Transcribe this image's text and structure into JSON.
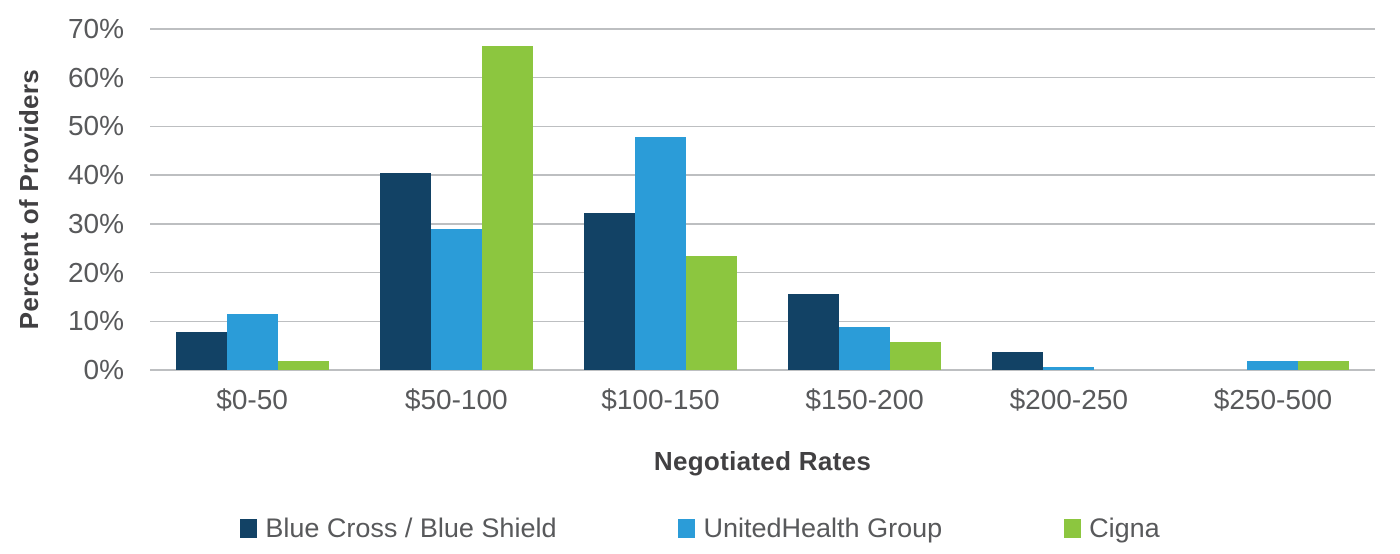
{
  "chart_data": {
    "type": "bar",
    "title": "",
    "xlabel": "Negotiated Rates",
    "ylabel": "Percent of Providers",
    "categories": [
      "$0-50",
      "$50-100",
      "$100-150",
      "$150-200",
      "$200-250",
      "$250-500"
    ],
    "series": [
      {
        "name": "Blue Cross / Blue Shield",
        "color": "#124265",
        "values": [
          7.8,
          40.4,
          32.2,
          15.7,
          3.8,
          0
        ]
      },
      {
        "name": "UnitedHealth Group",
        "color": "#2B9CD8",
        "values": [
          11.5,
          28.9,
          47.9,
          8.9,
          0.7,
          1.9
        ]
      },
      {
        "name": "Cigna",
        "color": "#8CC63F",
        "values": [
          1.8,
          66.6,
          23.5,
          5.8,
          0,
          1.9
        ]
      }
    ],
    "ylim": [
      0,
      70
    ],
    "y_ticks": [
      "0%",
      "10%",
      "20%",
      "30%",
      "40%",
      "50%",
      "60%",
      "70%"
    ],
    "y_tick_values": [
      0,
      10,
      20,
      30,
      40,
      50,
      60,
      70
    ],
    "grid": true,
    "gridline_color": "#bdbfc1",
    "tick_text_color": "#58595b",
    "axis_title_color": "#414042",
    "background_color": "#ffffff",
    "legend_position": "bottom"
  }
}
